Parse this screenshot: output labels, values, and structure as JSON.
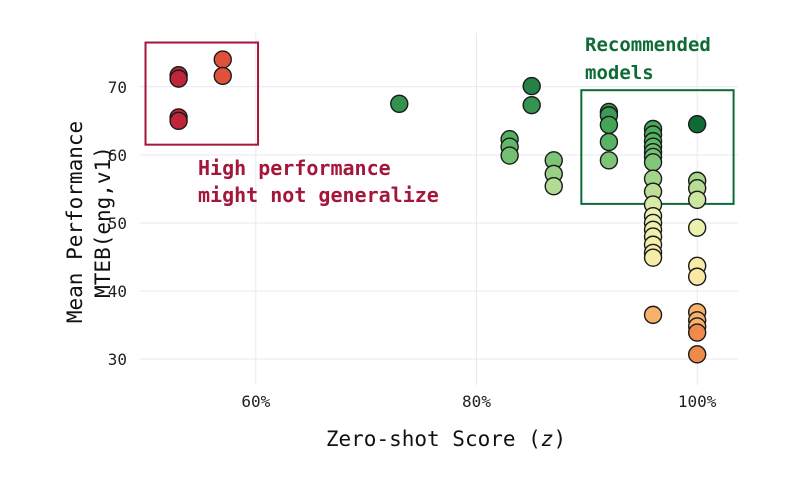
{
  "chart_data": {
    "type": "scatter",
    "xlabel_prefix": "Zero-shot Score (",
    "xlabel_var": "z",
    "xlabel_suffix": ")",
    "ylabel_line1": "Mean Performance",
    "ylabel_line2": "MTEB(eng,v1)",
    "x_ticks": [
      {
        "value": 60,
        "label": "60%"
      },
      {
        "value": 80,
        "label": "80%"
      },
      {
        "value": 100,
        "label": "100%"
      }
    ],
    "y_ticks": [
      {
        "value": 30,
        "label": "30"
      },
      {
        "value": 40,
        "label": "40"
      },
      {
        "value": 50,
        "label": "50"
      },
      {
        "value": 60,
        "label": "60"
      },
      {
        "value": 70,
        "label": "70"
      }
    ],
    "xlim": [
      49.5,
      103.7
    ],
    "ylim": [
      26.2,
      77.9
    ],
    "grid": true,
    "color_scale": {
      "range": [
        30,
        74
      ],
      "stops": [
        "#f4a261",
        "#fde7a3",
        "#eaf3b0",
        "#4daf5e",
        "#0f6b36"
      ],
      "high_perf_color": "#c0263a"
    },
    "points": [
      {
        "x": 53,
        "y": 71.7,
        "group": "high"
      },
      {
        "x": 53,
        "y": 71.2,
        "group": "high"
      },
      {
        "x": 53,
        "y": 65.5,
        "group": "high"
      },
      {
        "x": 53,
        "y": 65.0,
        "group": "high"
      },
      {
        "x": 57,
        "y": 74.0,
        "group": "high-light"
      },
      {
        "x": 57,
        "y": 71.6,
        "group": "high-light"
      },
      {
        "x": 73,
        "y": 67.5
      },
      {
        "x": 83,
        "y": 62.3
      },
      {
        "x": 83,
        "y": 61.2
      },
      {
        "x": 83,
        "y": 59.9
      },
      {
        "x": 85,
        "y": 70.1
      },
      {
        "x": 85,
        "y": 67.3
      },
      {
        "x": 87,
        "y": 59.2
      },
      {
        "x": 87,
        "y": 57.2
      },
      {
        "x": 87,
        "y": 55.4
      },
      {
        "x": 92,
        "y": 66.3
      },
      {
        "x": 92,
        "y": 65.8
      },
      {
        "x": 92,
        "y": 64.4
      },
      {
        "x": 92,
        "y": 61.9
      },
      {
        "x": 92,
        "y": 59.2
      },
      {
        "x": 96,
        "y": 63.8
      },
      {
        "x": 96,
        "y": 63.0
      },
      {
        "x": 96,
        "y": 62.0
      },
      {
        "x": 96,
        "y": 61.2
      },
      {
        "x": 96,
        "y": 60.4
      },
      {
        "x": 96,
        "y": 59.7
      },
      {
        "x": 96,
        "y": 58.9
      },
      {
        "x": 96,
        "y": 56.5
      },
      {
        "x": 96,
        "y": 54.6
      },
      {
        "x": 96,
        "y": 52.7
      },
      {
        "x": 96,
        "y": 51.0
      },
      {
        "x": 96,
        "y": 50.0
      },
      {
        "x": 96,
        "y": 49.0
      },
      {
        "x": 96,
        "y": 48.0
      },
      {
        "x": 96,
        "y": 46.8
      },
      {
        "x": 96,
        "y": 45.6
      },
      {
        "x": 96,
        "y": 44.9
      },
      {
        "x": 96,
        "y": 36.5
      },
      {
        "x": 100,
        "y": 64.5,
        "group": "top"
      },
      {
        "x": 100,
        "y": 56.2
      },
      {
        "x": 100,
        "y": 55.1
      },
      {
        "x": 100,
        "y": 53.4
      },
      {
        "x": 100,
        "y": 49.3
      },
      {
        "x": 100,
        "y": 43.7
      },
      {
        "x": 100,
        "y": 42.1
      },
      {
        "x": 100,
        "y": 36.9
      },
      {
        "x": 100,
        "y": 35.7
      },
      {
        "x": 100,
        "y": 34.8
      },
      {
        "x": 100,
        "y": 33.9
      },
      {
        "x": 100,
        "y": 30.7
      }
    ],
    "annotations": {
      "high_performance": {
        "line1": "High performance",
        "line2": "might not generalize",
        "color": "#a4163a",
        "box": {
          "x0": 50.0,
          "x1": 60.2,
          "y0": 61.5,
          "y1": 76.5
        }
      },
      "recommended": {
        "line1": "Recommended",
        "line2": "models",
        "color": "#0f6b36",
        "box": {
          "x0": 89.5,
          "x1": 103.3,
          "y0": 52.8,
          "y1": 69.5
        }
      }
    }
  }
}
